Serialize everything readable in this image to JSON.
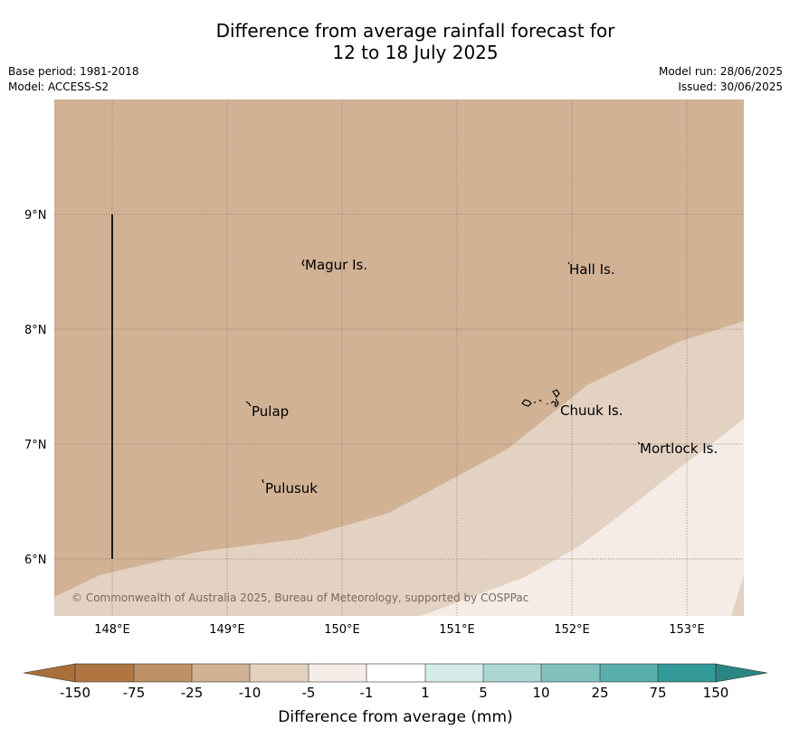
{
  "header": {
    "title_line1": "Difference from average rainfall forecast for",
    "title_line2": "12 to 18 July 2025",
    "base_period": "Base period: 1981-2018",
    "model": "Model: ACCESS-S2",
    "model_run": "Model run: 28/06/2025",
    "issued": "Issued: 30/06/2025"
  },
  "map": {
    "lat_labels": [
      "9°N",
      "8°N",
      "7°N",
      "6°N"
    ],
    "lon_labels": [
      "148°E",
      "149°E",
      "150°E",
      "151°E",
      "152°E",
      "153°E"
    ],
    "places": [
      "Magur Is.",
      "Hall Is.",
      "Pulap",
      "Chuuk Is.",
      "Mortlock Is.",
      "Pulusuk"
    ],
    "copyright": "© Commonwealth of Australia 2025, Bureau of Meteorology, supported by COSPPac",
    "region_colors": {
      "band_-25_-10": "#d1b295",
      "band_-10_-5": "#e3d1c1",
      "band_-5_-1": "#f5ece7"
    }
  },
  "colorbar": {
    "ticks": [
      "-150",
      "-75",
      "-25",
      "-10",
      "-5",
      "-1",
      "1",
      "5",
      "10",
      "25",
      "75",
      "150"
    ],
    "colors": [
      "#a97039",
      "#af7641",
      "#bf9167",
      "#d1b293",
      "#e3d1c0",
      "#f6ede8",
      "#ffffff",
      "#d5ebe8",
      "#abd6d3",
      "#82c2be",
      "#5aaeaa",
      "#339996",
      "#2a8682"
    ],
    "title": "Difference from average (mm)"
  }
}
